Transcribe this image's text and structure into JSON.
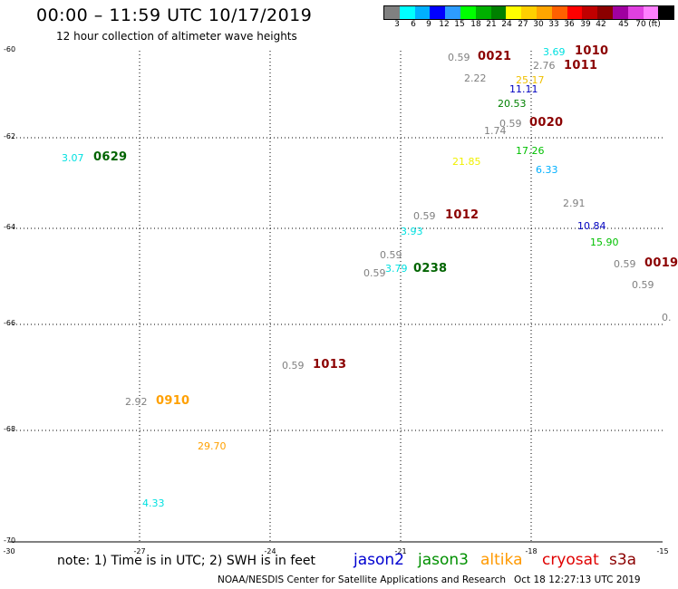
{
  "header": {
    "title": "00:00 – 11:59 UTC 10/17/2019",
    "subtitle": "12 hour collection of altimeter wave heights"
  },
  "legend": {
    "colors": [
      "#808080",
      "#00ffff",
      "#00b0ff",
      "#0000ff",
      "#2d9cff",
      "#00ff00",
      "#00b000",
      "#008000",
      "#ffff00",
      "#ffd000",
      "#ffa500",
      "#ff6000",
      "#ff0000",
      "#c00000",
      "#8b0000",
      "#a000a0",
      "#e040e0",
      "#ff80ff",
      "#000000"
    ],
    "labels": [
      "3",
      "6",
      "9",
      "12",
      "15",
      "18",
      "21",
      "24",
      "27",
      "30",
      "33",
      "36",
      "39",
      "42",
      "45",
      "70"
    ],
    "unit": "(ft)"
  },
  "axes": {
    "y_ticks": [
      "-60",
      "-62",
      "-64",
      "-66",
      "-68",
      "-70"
    ],
    "x_ticks": [
      "-30",
      "-27",
      "-24",
      "-21",
      "-18",
      "-15"
    ]
  },
  "observations": [
    {
      "text": "0.59",
      "color": "#808080",
      "kind": "val"
    },
    {
      "text": "0021",
      "color": "#8b0000",
      "kind": "tm"
    },
    {
      "text": "3.69",
      "color": "#00e0e0",
      "kind": "val"
    },
    {
      "text": "1010",
      "color": "#8b0000",
      "kind": "tm"
    },
    {
      "text": "2.76",
      "color": "#808080",
      "kind": "val"
    },
    {
      "text": "1011",
      "color": "#8b0000",
      "kind": "tm"
    },
    {
      "text": "2.22",
      "color": "#808080",
      "kind": "val"
    },
    {
      "text": "25.17",
      "color": "#f0c000",
      "kind": "val"
    },
    {
      "text": "11.11",
      "color": "#0000c0",
      "kind": "val"
    },
    {
      "text": "20.53",
      "color": "#008000",
      "kind": "val"
    },
    {
      "text": "1.74",
      "color": "#808080",
      "kind": "val"
    },
    {
      "text": "0.59",
      "color": "#808080",
      "kind": "val"
    },
    {
      "text": "0020",
      "color": "#8b0000",
      "kind": "tm"
    },
    {
      "text": "17.26",
      "color": "#00c000",
      "kind": "val"
    },
    {
      "text": "3.07",
      "color": "#00e0e0",
      "kind": "val"
    },
    {
      "text": "0629",
      "color": "#006400",
      "kind": "tm"
    },
    {
      "text": "21.85",
      "color": "#f0f000",
      "kind": "val"
    },
    {
      "text": "6.33",
      "color": "#00b0ff",
      "kind": "val"
    },
    {
      "text": "2.91",
      "color": "#808080",
      "kind": "val"
    },
    {
      "text": "0.59",
      "color": "#808080",
      "kind": "val"
    },
    {
      "text": "1012",
      "color": "#8b0000",
      "kind": "tm"
    },
    {
      "text": "3.93",
      "color": "#00e0e0",
      "kind": "val"
    },
    {
      "text": "10.84",
      "color": "#0000c0",
      "kind": "val"
    },
    {
      "text": "15.90",
      "color": "#00c000",
      "kind": "val"
    },
    {
      "text": "0.59",
      "color": "#808080",
      "kind": "val"
    },
    {
      "text": "0.59",
      "color": "#808080",
      "kind": "val"
    },
    {
      "text": "0019",
      "color": "#8b0000",
      "kind": "tm"
    },
    {
      "text": "3.79",
      "color": "#00e0e0",
      "kind": "val"
    },
    {
      "text": "0238",
      "color": "#006400",
      "kind": "tm"
    },
    {
      "text": "0.59",
      "color": "#808080",
      "kind": "val"
    },
    {
      "text": "0.59",
      "color": "#808080",
      "kind": "val"
    },
    {
      "text": "0.",
      "color": "#808080",
      "kind": "val"
    },
    {
      "text": "0.59",
      "color": "#808080",
      "kind": "val"
    },
    {
      "text": "1013",
      "color": "#8b0000",
      "kind": "tm"
    },
    {
      "text": "2.92",
      "color": "#808080",
      "kind": "val"
    },
    {
      "text": "0910",
      "color": "#ffa000",
      "kind": "tm"
    },
    {
      "text": "29.70",
      "color": "#ffa000",
      "kind": "val"
    },
    {
      "text": "4.33",
      "color": "#00e0e0",
      "kind": "val"
    }
  ],
  "footer": {
    "note": "note: 1) Time is in UTC; 2) SWH is in feet",
    "credit": "NOAA/NESDIS Center for Satellite Applications and Research",
    "timestamp": "Oct 18 12:27:13 UTC 2019",
    "satellites": [
      {
        "name": "jason2",
        "color": "#0000d0"
      },
      {
        "name": "jason3",
        "color": "#009000"
      },
      {
        "name": "altika",
        "color": "#ff9900"
      },
      {
        "name": "cryosat",
        "color": "#e00000"
      },
      {
        "name": "s3a",
        "color": "#8b0000"
      }
    ]
  }
}
